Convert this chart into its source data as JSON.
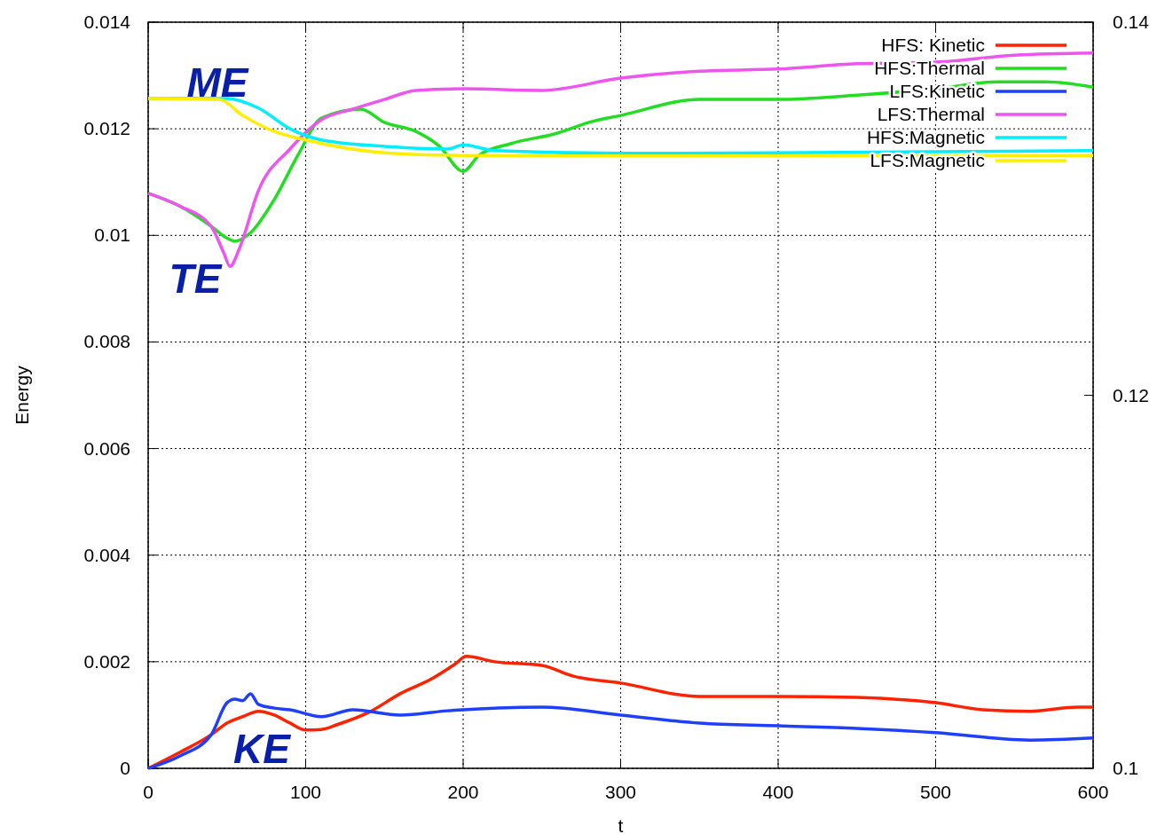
{
  "chart_data": {
    "type": "line",
    "xlabel": "t",
    "ylabel": "Energy",
    "xlim": [
      0,
      600
    ],
    "xticks": [
      0,
      100,
      200,
      300,
      400,
      500,
      600
    ],
    "ylim": [
      0,
      0.014
    ],
    "yticks": [
      0,
      0.002,
      0.004,
      0.006,
      0.008,
      0.01,
      0.012,
      0.014
    ],
    "y2lim": [
      0.1,
      0.14
    ],
    "y2ticks": [
      0.1,
      0.12,
      0.14
    ],
    "grid": true,
    "legend": "top right",
    "marker": "none",
    "line_style": "solid",
    "annotations": [
      "ME",
      "TE",
      "KE"
    ],
    "series": [
      {
        "name": "HFS: Kinetic",
        "color": "#ff2200",
        "x": [
          0,
          20,
          40,
          50,
          60,
          70,
          80,
          90,
          100,
          110,
          120,
          140,
          160,
          180,
          195,
          202,
          220,
          250,
          270,
          300,
          350,
          400,
          450,
          500,
          530,
          560,
          590,
          600
        ],
        "values": [
          0,
          0.0003,
          0.00063,
          0.00085,
          0.00097,
          0.00107,
          0.001,
          0.00085,
          0.00072,
          0.00073,
          0.00082,
          0.00105,
          0.0014,
          0.00168,
          0.00196,
          0.0021,
          0.002,
          0.00193,
          0.00173,
          0.0016,
          0.00135,
          0.00135,
          0.00133,
          0.00123,
          0.0011,
          0.00107,
          0.00115,
          0.00115
        ]
      },
      {
        "name": "HFS:Thermal",
        "color": "#22dd22",
        "x": [
          0,
          20,
          40,
          50,
          55,
          65,
          80,
          95,
          110,
          135,
          150,
          170,
          185,
          200,
          210,
          230,
          260,
          280,
          300,
          350,
          400,
          450,
          500,
          540,
          570,
          600
        ],
        "values": [
          0.01079,
          0.01055,
          0.01017,
          0.00995,
          0.00989,
          0.01005,
          0.01067,
          0.0115,
          0.0122,
          0.01237,
          0.01212,
          0.01195,
          0.01167,
          0.0112,
          0.0115,
          0.01172,
          0.01192,
          0.01212,
          0.01225,
          0.01255,
          0.01255,
          0.01263,
          0.01275,
          0.01288,
          0.01288,
          0.01278
        ]
      },
      {
        "name": "LFS:Kinetic",
        "color": "#1f3fff",
        "x": [
          0,
          20,
          40,
          50,
          55,
          60,
          65,
          70,
          80,
          90,
          110,
          130,
          160,
          190,
          250,
          300,
          350,
          400,
          450,
          500,
          560,
          600
        ],
        "values": [
          0,
          0.00023,
          0.00063,
          0.00123,
          0.0013,
          0.00127,
          0.0014,
          0.0012,
          0.00113,
          0.0011,
          0.00097,
          0.0011,
          0.001,
          0.00108,
          0.00115,
          0.001,
          0.00085,
          0.0008,
          0.00075,
          0.00067,
          0.00053,
          0.00057
        ]
      },
      {
        "name": "LFS:Thermal",
        "color": "#ee55ee",
        "x": [
          0,
          20,
          40,
          48,
          52,
          58,
          70,
          90,
          110,
          130,
          150,
          170,
          200,
          250,
          300,
          350,
          400,
          450,
          500,
          550,
          600
        ],
        "values": [
          0.01079,
          0.01055,
          0.01017,
          0.00967,
          0.00942,
          0.00976,
          0.01084,
          0.01162,
          0.01217,
          0.01237,
          0.01255,
          0.01272,
          0.01275,
          0.01272,
          0.01295,
          0.01308,
          0.01312,
          0.01322,
          0.01325,
          0.01338,
          0.01342
        ]
      },
      {
        "name": "HFS:Magnetic",
        "color": "#00eeff",
        "x": [
          0,
          50,
          70,
          90,
          110,
          150,
          190,
          200,
          220,
          300,
          400,
          600
        ],
        "values": [
          0.01257,
          0.01257,
          0.01239,
          0.012,
          0.01179,
          0.01167,
          0.01162,
          0.0117,
          0.01159,
          0.01154,
          0.01155,
          0.01159
        ]
      },
      {
        "name": "LFS:Magnetic",
        "color": "#ffee00",
        "x": [
          0,
          45,
          60,
          80,
          100,
          150,
          200,
          300,
          600
        ],
        "values": [
          0.01257,
          0.01255,
          0.01225,
          0.01195,
          0.01179,
          0.01155,
          0.0115,
          0.01149,
          0.0115
        ]
      }
    ]
  }
}
